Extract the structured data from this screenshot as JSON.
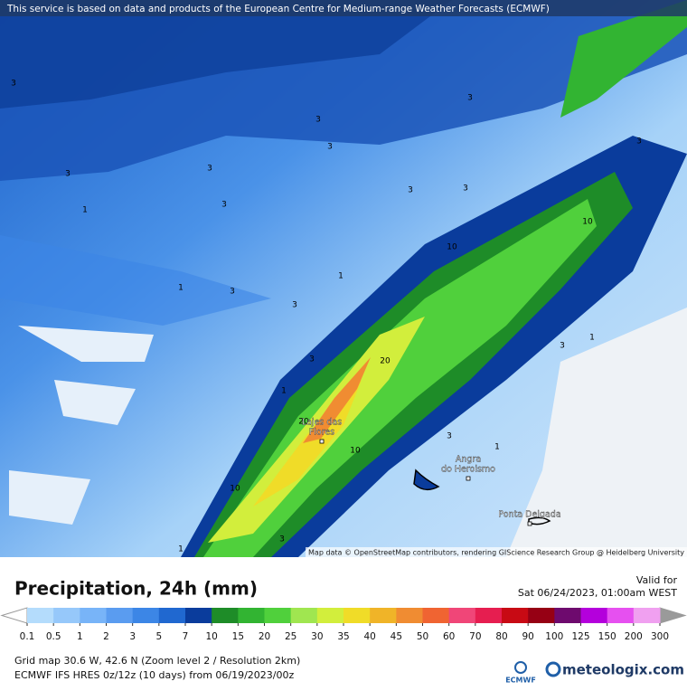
{
  "banner": "This service is based on data and products of the European Centre for Medium-range Weather Forecasts (ECMWF)",
  "map": {
    "contour_labels": [
      "3",
      "3",
      "3",
      "3",
      "3",
      "1",
      "3",
      "3",
      "3",
      "3",
      "1",
      "3",
      "3",
      "10",
      "10",
      "1",
      "3",
      "1",
      "3",
      "20",
      "1",
      "20",
      "10",
      "3",
      "1",
      "10",
      "3",
      "1",
      "3"
    ],
    "places": [
      {
        "lines": [
          "Lajes das",
          "Flores"
        ]
      },
      {
        "lines": [
          "Angra",
          "do Heroismo"
        ]
      },
      {
        "lines": [
          "Ponta Delgada"
        ]
      }
    ],
    "attribution": "Map data © OpenStreetMap contributors, rendering GIScience Research Group @ Heidelberg University"
  },
  "legend": {
    "title": "Precipitation, 24h (mm)",
    "valid_label": "Valid for",
    "valid_time": "Sat 06/24/2023, 01:00am WEST",
    "labels": [
      0.1,
      0.5,
      1,
      2,
      3,
      5,
      7,
      10,
      15,
      20,
      25,
      30,
      35,
      40,
      45,
      50,
      60,
      70,
      80,
      90,
      100,
      125,
      150,
      200,
      300
    ],
    "colors": [
      "#b4dcfc",
      "#96c8fa",
      "#78b4f8",
      "#5a9cf0",
      "#3c86e6",
      "#2068d0",
      "#0a3c9c",
      "#1e8c28",
      "#32b432",
      "#50d03c",
      "#a0e650",
      "#d2ee3c",
      "#f0dc28",
      "#f0b428",
      "#f08c32",
      "#f06432",
      "#f04678",
      "#e61e50",
      "#c80a14",
      "#960014",
      "#6e0a6e",
      "#b400dc",
      "#e650f0",
      "#f0a0f0",
      "#f8dcf8"
    ],
    "end_low": "#ffffff",
    "end_high": "#9a9a9a"
  },
  "footer": {
    "line1": "Grid map 30.6 W, 42.6 N (Zoom level 2 / Resolution 2km)",
    "line2": "ECMWF IFS HRES 0z/12z (10 days) from 06/19/2023/00z",
    "ecmwf": "ECMWF",
    "brand": "meteologix.com"
  }
}
